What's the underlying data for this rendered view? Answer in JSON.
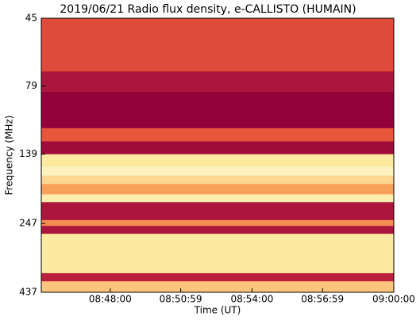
{
  "chart_data": {
    "type": "heatmap",
    "title": "2019/06/21  Radio flux density, e-CALLISTO (HUMAIN)",
    "xlabel": "Time (UT)",
    "ylabel": "Frequency (MHz)",
    "xlim": [
      31505,
      32400
    ],
    "xticks": [
      {
        "value": 31680,
        "label": "08:48:00"
      },
      {
        "value": 31859,
        "label": "08:50:59"
      },
      {
        "value": 32040,
        "label": "08:54:00"
      },
      {
        "value": 32219,
        "label": "08:56:59"
      },
      {
        "value": 32400,
        "label": "09:00:00"
      }
    ],
    "ylim": [
      45,
      437
    ],
    "yticks": [
      45,
      79,
      139,
      247,
      437
    ],
    "y_scale": "log",
    "y_inverted": true,
    "y_edges": [
      45,
      70,
      83,
      112,
      125,
      139,
      154,
      166,
      178,
      194,
      207,
      240,
      252,
      269,
      373,
      399,
      437
    ],
    "values": [
      0.35,
      0.1,
      0.0,
      0.4,
      0.05,
      0.8,
      0.95,
      0.75,
      0.6,
      0.85,
      0.1,
      0.55,
      0.1,
      0.8,
      0.15,
      0.7
    ],
    "zlim": [
      0,
      1
    ],
    "colormap": [
      "#93003a",
      "#c42a3e",
      "#e8553a",
      "#f9a05a",
      "#fde9a0",
      "#fdf6c8"
    ]
  }
}
